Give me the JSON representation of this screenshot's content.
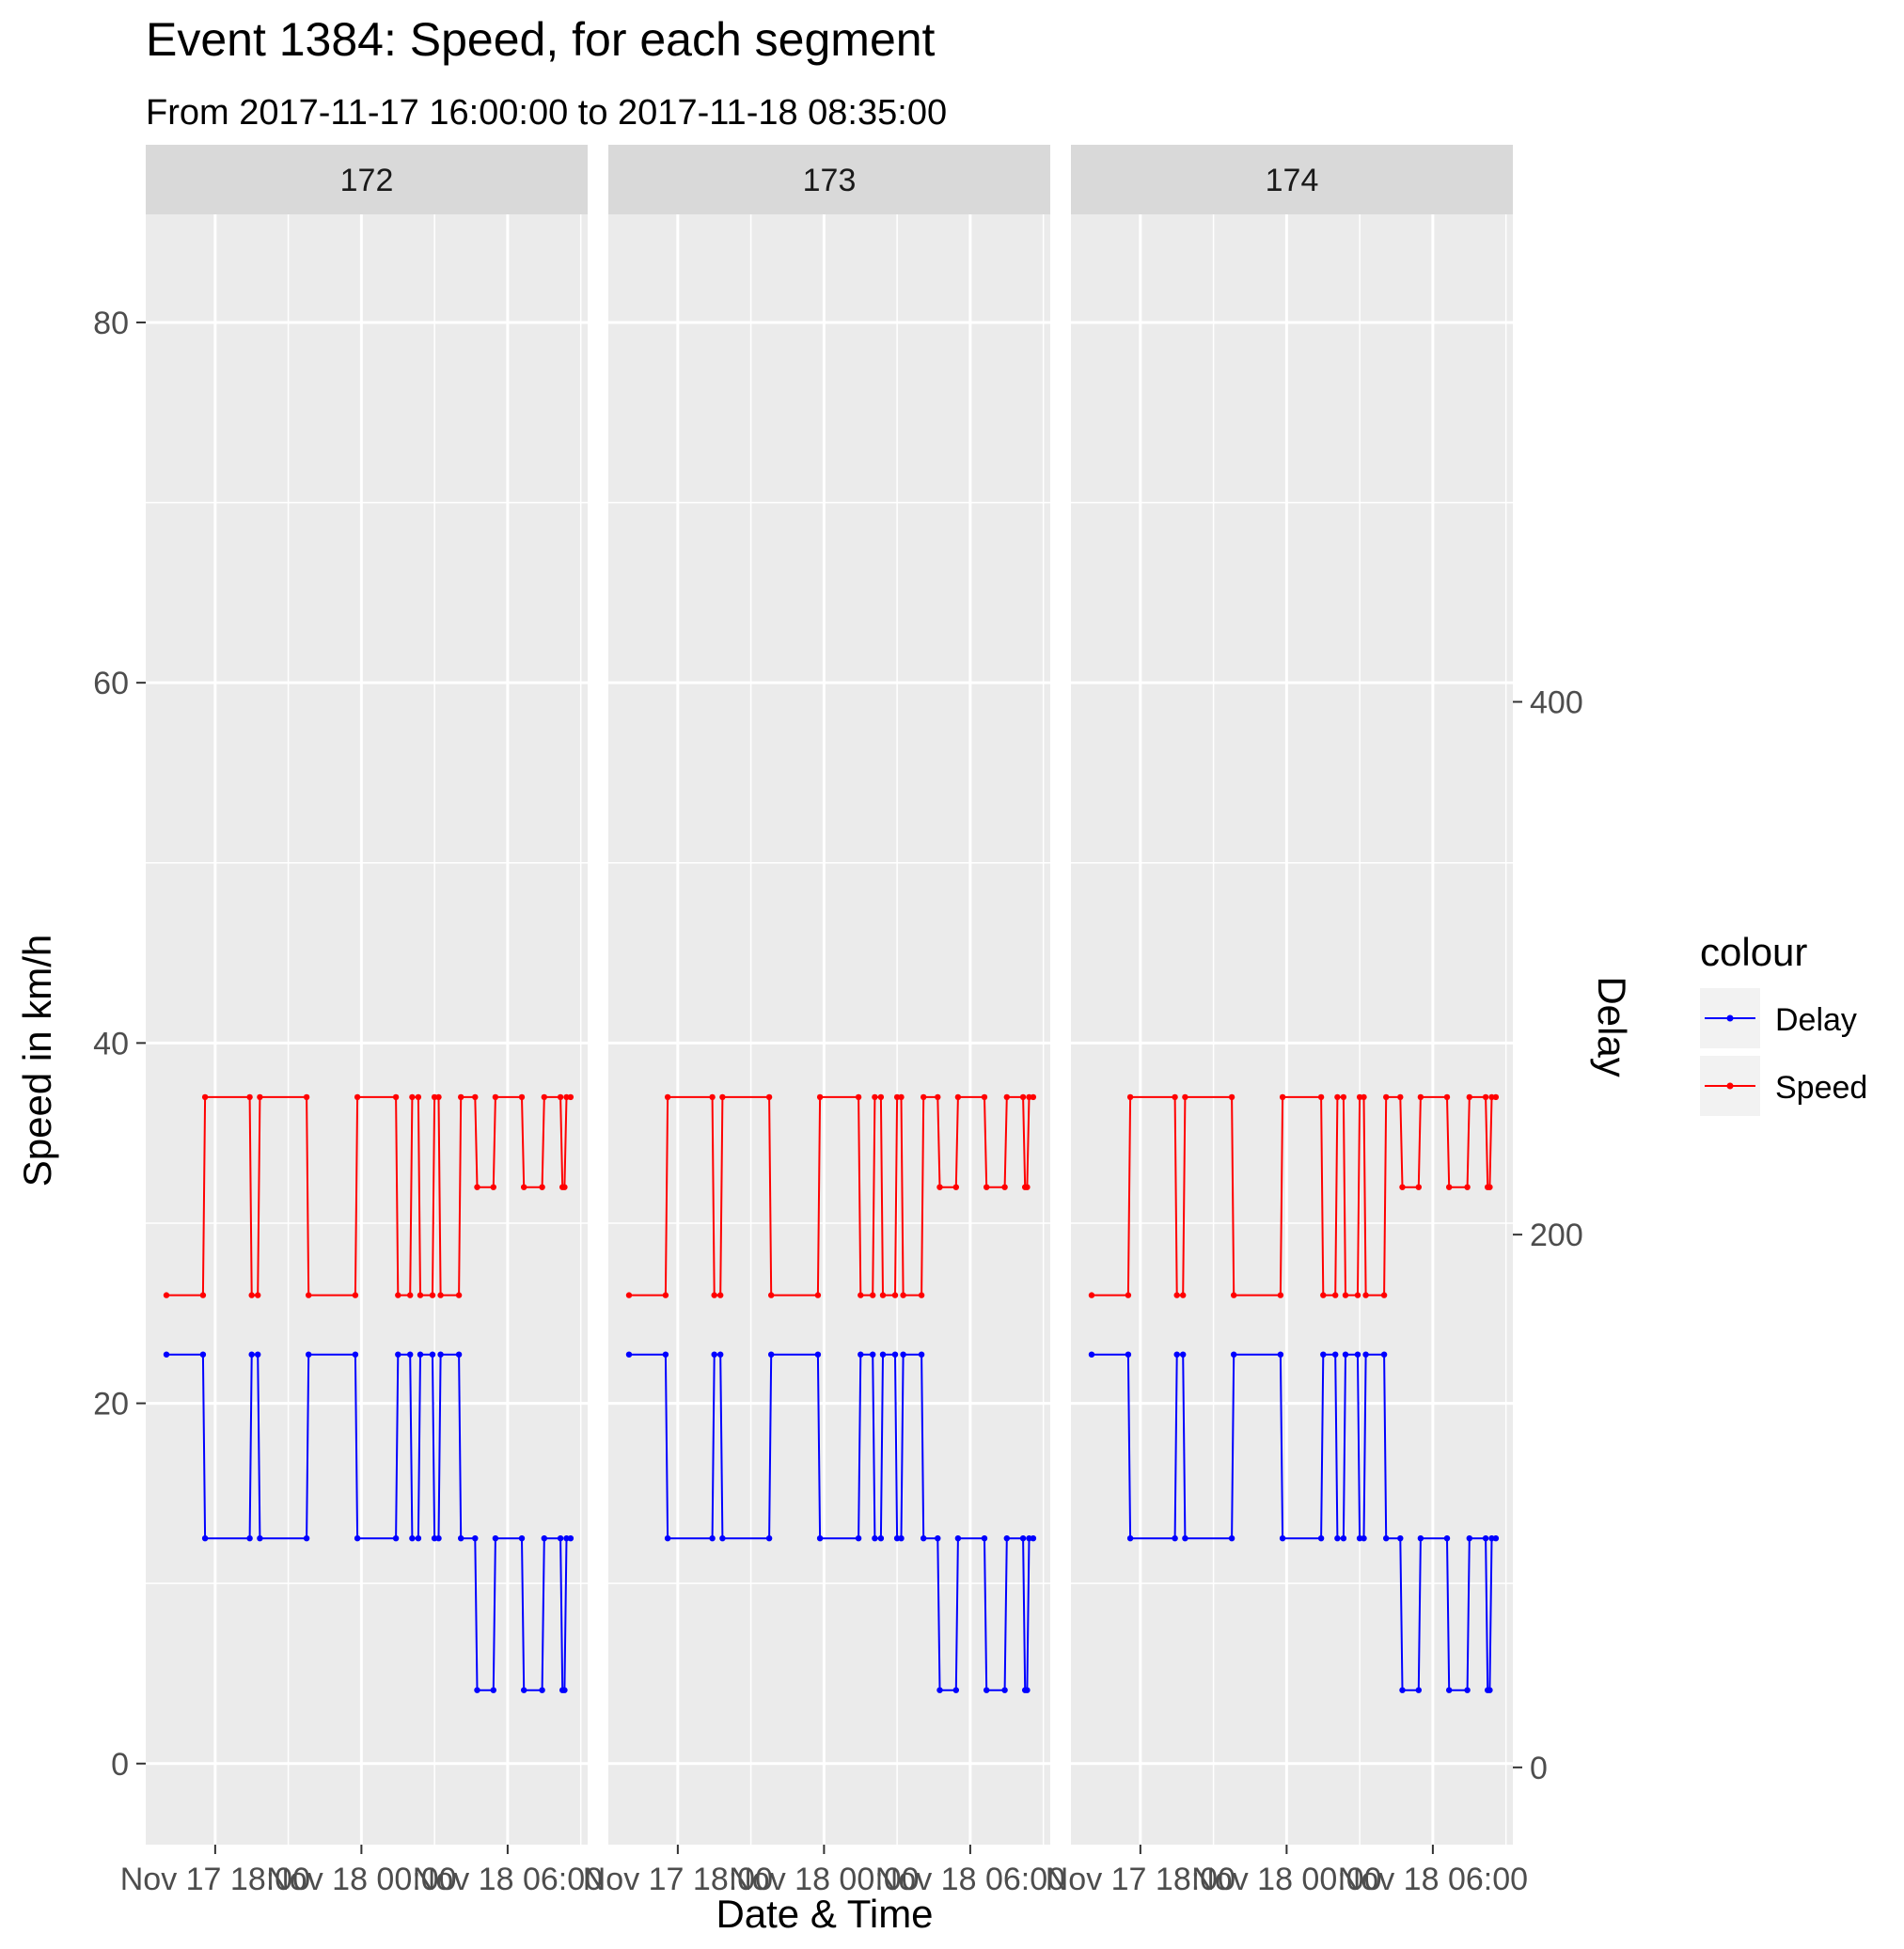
{
  "chart_data": {
    "type": "line",
    "title": "Event 1384: Speed, for each segment",
    "subtitle": "From 2017-11-17 16:00:00 to 2017-11-18 08:35:00",
    "xlabel": "Date & Time",
    "ylabel": "Speed in km/h",
    "y2label": "Delay",
    "ylim": [
      -4.5,
      86
    ],
    "y2lim": [
      -29,
      583
    ],
    "xlim": [
      "2017-11-17 15:09",
      "2017-11-18 09:17"
    ],
    "yticks": [
      0,
      20,
      40,
      60,
      80
    ],
    "y2ticks": [
      0,
      200,
      400
    ],
    "xticks": [
      {
        "t": "2017-11-17 18:00",
        "label": "Nov 17 18:00"
      },
      {
        "t": "2017-11-18 00:00",
        "label": "Nov 18 00:00"
      },
      {
        "t": "2017-11-18 06:00",
        "label": "Nov 18 06:00"
      }
    ],
    "grid": true,
    "legend": {
      "title": "colour",
      "position": "right",
      "entries": [
        {
          "label": "Delay",
          "color": "#0000ff"
        },
        {
          "label": "Speed",
          "color": "#ff0000"
        }
      ]
    },
    "facets": [
      "172",
      "173",
      "174"
    ],
    "series": [
      {
        "name": "Speed",
        "axis": "left",
        "color": "#ff0000",
        "points": [
          [
            "2017-11-17 16:00",
            26
          ],
          [
            "2017-11-17 17:30",
            26
          ],
          [
            "2017-11-17 17:35",
            37
          ],
          [
            "2017-11-17 19:25",
            37
          ],
          [
            "2017-11-17 19:30",
            26
          ],
          [
            "2017-11-17 19:45",
            26
          ],
          [
            "2017-11-17 19:50",
            37
          ],
          [
            "2017-11-17 21:45",
            37
          ],
          [
            "2017-11-17 21:50",
            26
          ],
          [
            "2017-11-17 23:45",
            26
          ],
          [
            "2017-11-17 23:50",
            37
          ],
          [
            "2017-11-18 01:25",
            37
          ],
          [
            "2017-11-18 01:30",
            26
          ],
          [
            "2017-11-18 02:00",
            26
          ],
          [
            "2017-11-18 02:05",
            37
          ],
          [
            "2017-11-18 02:20",
            37
          ],
          [
            "2017-11-18 02:25",
            26
          ],
          [
            "2017-11-18 02:55",
            26
          ],
          [
            "2017-11-18 03:00",
            37
          ],
          [
            "2017-11-18 03:10",
            37
          ],
          [
            "2017-11-18 03:15",
            26
          ],
          [
            "2017-11-18 04:00",
            26
          ],
          [
            "2017-11-18 04:05",
            37
          ],
          [
            "2017-11-18 04:40",
            37
          ],
          [
            "2017-11-18 04:45",
            32
          ],
          [
            "2017-11-18 05:25",
            32
          ],
          [
            "2017-11-18 05:30",
            37
          ],
          [
            "2017-11-18 06:35",
            37
          ],
          [
            "2017-11-18 06:40",
            32
          ],
          [
            "2017-11-18 07:25",
            32
          ],
          [
            "2017-11-18 07:30",
            37
          ],
          [
            "2017-11-18 08:10",
            37
          ],
          [
            "2017-11-18 08:15",
            32
          ],
          [
            "2017-11-18 08:20",
            32
          ],
          [
            "2017-11-18 08:25",
            37
          ],
          [
            "2017-11-18 08:35",
            37
          ]
        ]
      },
      {
        "name": "Delay",
        "axis": "right",
        "color": "#0000ff",
        "points": [
          [
            "2017-11-17 16:00",
            155
          ],
          [
            "2017-11-17 17:30",
            155
          ],
          [
            "2017-11-17 17:35",
            86
          ],
          [
            "2017-11-17 19:25",
            86
          ],
          [
            "2017-11-17 19:30",
            155
          ],
          [
            "2017-11-17 19:45",
            155
          ],
          [
            "2017-11-17 19:50",
            86
          ],
          [
            "2017-11-17 21:45",
            86
          ],
          [
            "2017-11-17 21:50",
            155
          ],
          [
            "2017-11-17 23:45",
            155
          ],
          [
            "2017-11-17 23:50",
            86
          ],
          [
            "2017-11-18 01:25",
            86
          ],
          [
            "2017-11-18 01:30",
            155
          ],
          [
            "2017-11-18 02:00",
            155
          ],
          [
            "2017-11-18 02:05",
            86
          ],
          [
            "2017-11-18 02:20",
            86
          ],
          [
            "2017-11-18 02:25",
            155
          ],
          [
            "2017-11-18 02:55",
            155
          ],
          [
            "2017-11-18 03:00",
            86
          ],
          [
            "2017-11-18 03:10",
            86
          ],
          [
            "2017-11-18 03:15",
            155
          ],
          [
            "2017-11-18 04:00",
            155
          ],
          [
            "2017-11-18 04:05",
            86
          ],
          [
            "2017-11-18 04:40",
            86
          ],
          [
            "2017-11-18 04:45",
            29
          ],
          [
            "2017-11-18 05:25",
            29
          ],
          [
            "2017-11-18 05:30",
            86
          ],
          [
            "2017-11-18 06:35",
            86
          ],
          [
            "2017-11-18 06:40",
            29
          ],
          [
            "2017-11-18 07:25",
            29
          ],
          [
            "2017-11-18 07:30",
            86
          ],
          [
            "2017-11-18 08:10",
            86
          ],
          [
            "2017-11-18 08:15",
            29
          ],
          [
            "2017-11-18 08:20",
            29
          ],
          [
            "2017-11-18 08:25",
            86
          ],
          [
            "2017-11-18 08:35",
            86
          ]
        ]
      }
    ]
  }
}
